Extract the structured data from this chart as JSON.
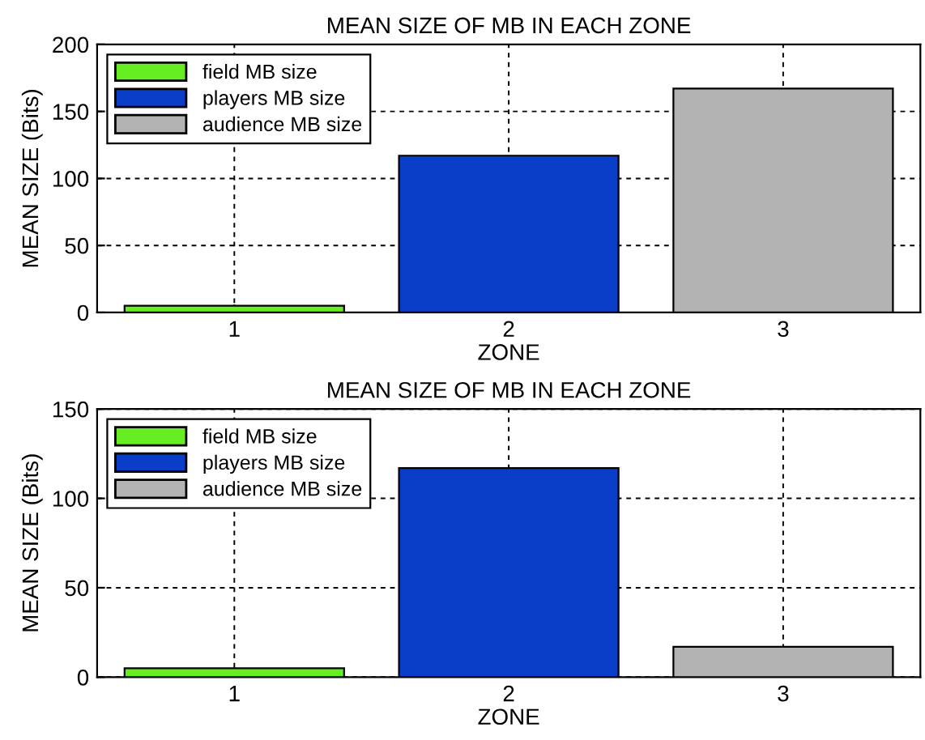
{
  "chart_data": [
    {
      "type": "bar",
      "title": "MEAN SIZE OF MB IN EACH ZONE",
      "xlabel": "ZONE",
      "ylabel": "MEAN SIZE (Bits)",
      "categories": [
        "1",
        "2",
        "3"
      ],
      "ylim": [
        0,
        200
      ],
      "yticks": [
        0,
        50,
        100,
        150,
        200
      ],
      "grid": true,
      "legend": "top left",
      "series": [
        {
          "name": "field MB size",
          "color": "#66ee22",
          "values": [
            5,
            null,
            null
          ]
        },
        {
          "name": "players MB size",
          "color": "#0a3ec8",
          "values": [
            null,
            117,
            null
          ]
        },
        {
          "name": "audience MB size",
          "color": "#b3b3b3",
          "values": [
            null,
            null,
            167
          ]
        }
      ]
    },
    {
      "type": "bar",
      "title": "MEAN SIZE OF MB IN EACH ZONE",
      "xlabel": "ZONE",
      "ylabel": "MEAN SIZE (Bits)",
      "categories": [
        "1",
        "2",
        "3"
      ],
      "ylim": [
        0,
        150
      ],
      "yticks": [
        0,
        50,
        100,
        150
      ],
      "grid": true,
      "legend": "top left",
      "series": [
        {
          "name": "field MB size",
          "color": "#66ee22",
          "values": [
            5,
            null,
            null
          ]
        },
        {
          "name": "players MB size",
          "color": "#0a3ec8",
          "values": [
            null,
            117,
            null
          ]
        },
        {
          "name": "audience MB size",
          "color": "#b3b3b3",
          "values": [
            null,
            null,
            17
          ]
        }
      ]
    }
  ]
}
